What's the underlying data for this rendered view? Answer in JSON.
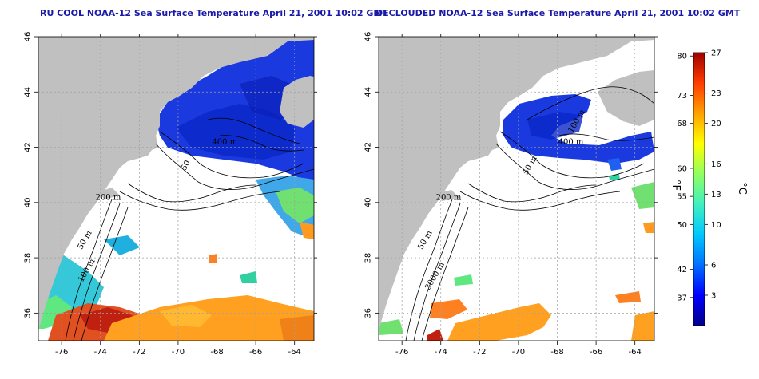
{
  "panels": [
    {
      "title": "RU COOL NOAA-12 Sea Surface Temperature April 21, 2001 10:02 GMT",
      "contours": [
        {
          "label": "200 m",
          "lon": -73.6,
          "lat": 40.1
        },
        {
          "label": "50 m",
          "lon": -74.7,
          "lat": 38.6
        },
        {
          "label": "400 m",
          "lon": -67.6,
          "lat": 42.1
        },
        {
          "label": "100 m",
          "lon": -74.6,
          "lat": 37.5
        },
        {
          "label": "50",
          "lon": -69.5,
          "lat": 41.3
        }
      ]
    },
    {
      "title": "DECLOUDED NOAA-12 Sea Surface Temperature April 21, 2001 10:02 GMT",
      "contours": [
        {
          "label": "200 m",
          "lon": -73.6,
          "lat": 40.1
        },
        {
          "label": "50 m",
          "lon": -74.7,
          "lat": 38.6
        },
        {
          "label": "100 m",
          "lon": -66.9,
          "lat": 42.9
        },
        {
          "label": "400 m",
          "lon": -67.3,
          "lat": 42.1
        },
        {
          "label": "50 m",
          "lon": -69.3,
          "lat": 41.3
        },
        {
          "label": "3000 m",
          "lon": -74.2,
          "lat": 37.3
        }
      ]
    }
  ],
  "axes": {
    "x_ticks": [
      -76,
      -74,
      -72,
      -70,
      -68,
      -66,
      -64
    ],
    "y_ticks": [
      36,
      38,
      40,
      42,
      44,
      46
    ],
    "lon_range": [
      -77.2,
      -63.0
    ],
    "lat_range": [
      35.0,
      46.0
    ]
  },
  "colorbar": {
    "fahrenheit_label": "°F",
    "celsius_label": "°C",
    "fahrenheit_ticks": [
      80,
      73,
      68,
      60,
      55,
      50,
      42,
      37
    ],
    "celsius_ticks": [
      27,
      23,
      20,
      16,
      13,
      10,
      6,
      3
    ],
    "range_c": [
      0,
      27
    ],
    "colors": [
      "#00008b",
      "#0000ff",
      "#0070ff",
      "#00c8ff",
      "#40f0c0",
      "#90ff60",
      "#ffff00",
      "#ffa000",
      "#ff3c00",
      "#a00000"
    ]
  },
  "colors": {
    "land": "#c0c0c0",
    "water": "#ffffff",
    "title": "#1a1aa8",
    "grid": "#a0a0a0"
  }
}
